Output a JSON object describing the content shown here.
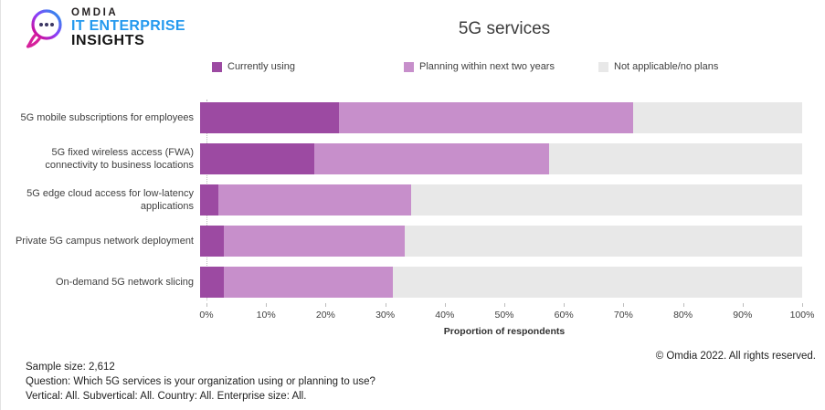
{
  "header": {
    "logo": {
      "omdia": "OMDIA",
      "line2": "IT ENTERPRISE",
      "line3": "INSIGHTS"
    },
    "title": "5G services"
  },
  "chart_data": {
    "type": "bar",
    "orientation": "horizontal",
    "stacked": true,
    "title": "5G services",
    "xlabel": "Proportion of respondents",
    "xlim": [
      0,
      100
    ],
    "x_tick_labels": [
      "0%",
      "10%",
      "20%",
      "30%",
      "40%",
      "50%",
      "60%",
      "70%",
      "80%",
      "90%",
      "100%"
    ],
    "legend_position": "top",
    "legend": [
      {
        "label": "Currently using",
        "color": "#9c4aa2"
      },
      {
        "label": "Planning within next two years",
        "color": "#c78fcb"
      },
      {
        "label": "Not applicable/no plans",
        "color": "#e8e8e8"
      }
    ],
    "categories": [
      "5G mobile subscriptions for employees",
      "5G fixed wireless access (FWA) connectivity to business locations",
      "5G edge cloud access for low-latency applications",
      "Private 5G campus network deployment",
      "On-demand 5G network slicing"
    ],
    "series": [
      {
        "name": "Currently using",
        "color": "#9c4aa2",
        "values": [
          23,
          19,
          3,
          4,
          4
        ]
      },
      {
        "name": "Planning within next two years",
        "color": "#c78fcb",
        "values": [
          49,
          39,
          32,
          30,
          28
        ]
      },
      {
        "name": "Not applicable/no plans",
        "color": "#e8e8e8",
        "values": [
          28,
          42,
          65,
          66,
          68
        ]
      }
    ]
  },
  "footer": {
    "sample_size": "Sample size: 2,612",
    "question": "Question: Which 5G services is your organization using or planning to use?",
    "filters": "Vertical: All. Subvertical: All. Country: All. Enterprise size: All.",
    "copyright": "© Omdia 2022. All rights reserved."
  }
}
